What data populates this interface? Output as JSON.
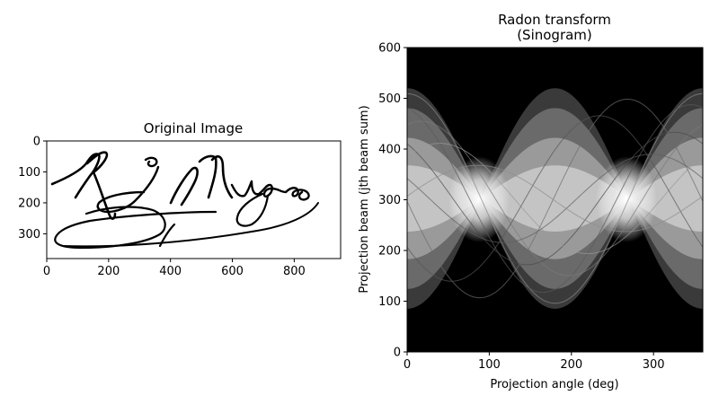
{
  "chart_data": [
    {
      "type": "heatmap",
      "title": "Original Image",
      "xlabel": "",
      "ylabel": "",
      "xlim": [
        0,
        950
      ],
      "ylim": [
        380,
        0
      ],
      "x_ticks": [
        0,
        200,
        400,
        600,
        800
      ],
      "y_ticks": [
        0,
        100,
        200,
        300
      ],
      "colormap": "gray",
      "content": "handwritten signature",
      "signature_text": "R G Mugabe",
      "background_color": "#ffffff",
      "ink_color": "#000000"
    },
    {
      "type": "heatmap",
      "title_lines": [
        "Radon transform",
        "(Sinogram)"
      ],
      "xlabel": "Projection angle (deg)",
      "ylabel": "Projection beam (jth beam sum)",
      "xlim": [
        0,
        360
      ],
      "ylim": [
        0,
        600
      ],
      "x_ticks": [
        0,
        100,
        200,
        300
      ],
      "y_ticks": [
        0,
        100,
        200,
        300,
        400,
        500,
        600
      ],
      "colormap": "gray",
      "background_color": "#000000",
      "envelope_upper_peak": 520,
      "envelope_lower_trough": 85,
      "crossing_angles": [
        90,
        270
      ],
      "crossing_upper": 385,
      "crossing_lower": 215
    }
  ]
}
